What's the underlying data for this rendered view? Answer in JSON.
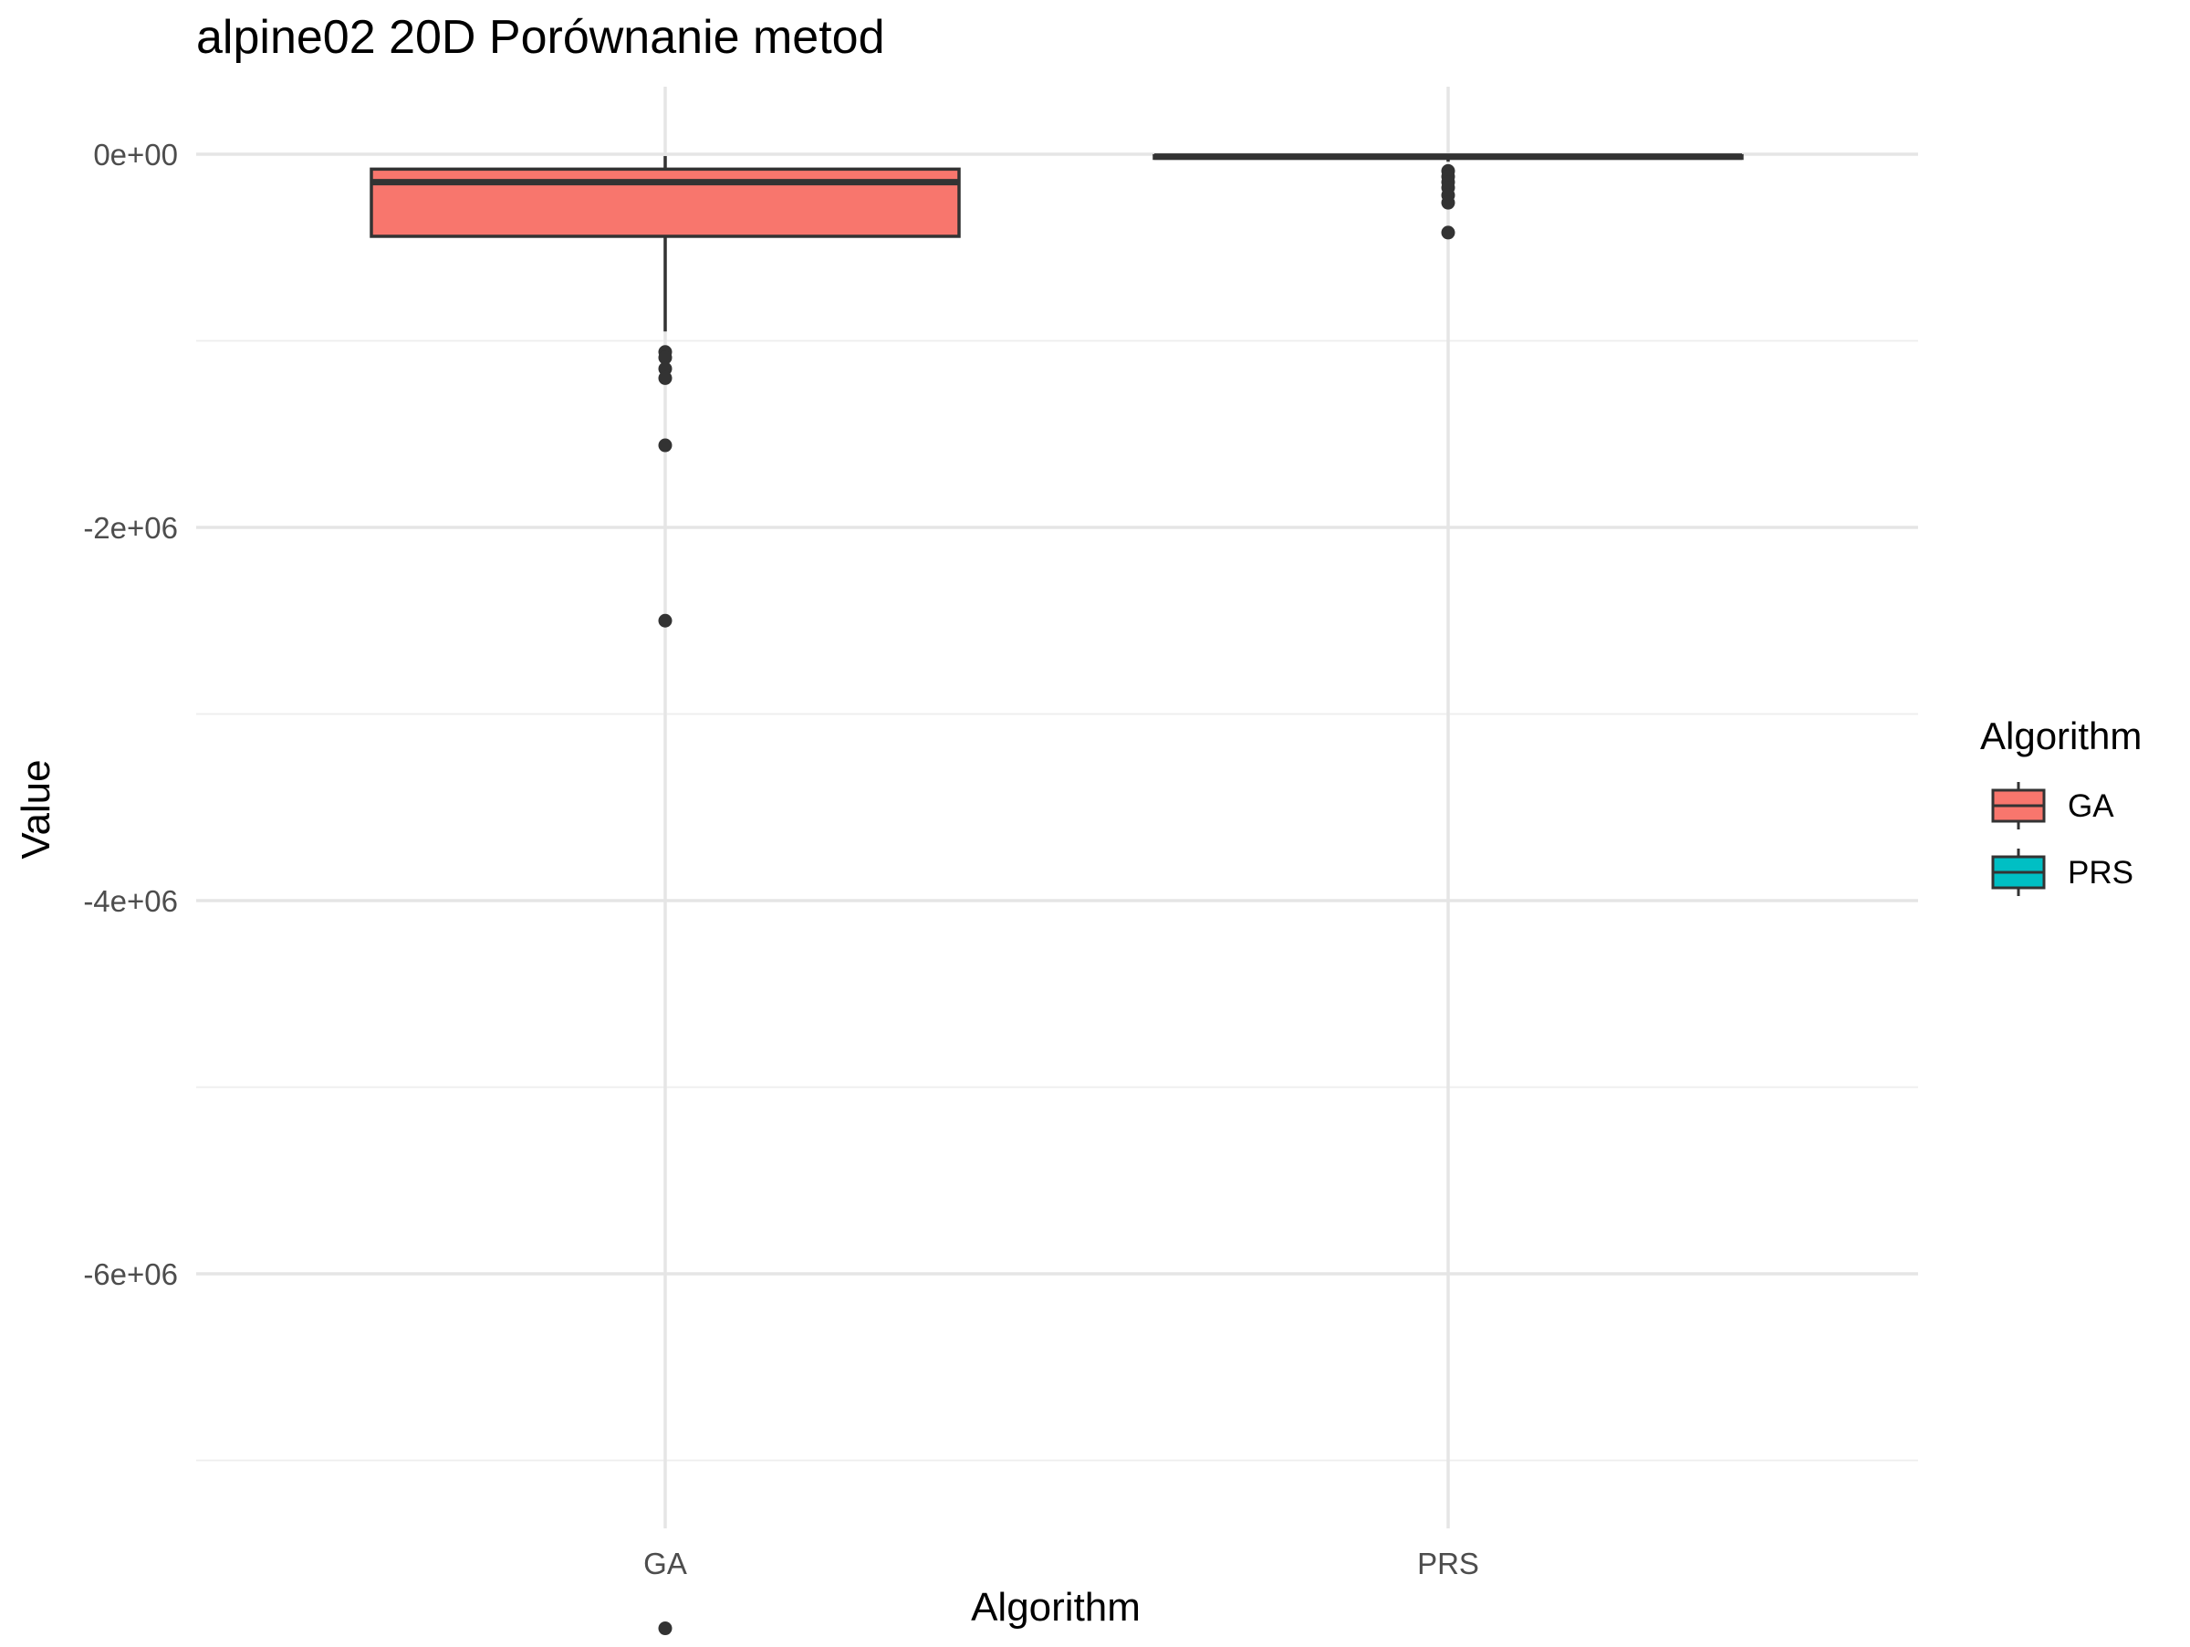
{
  "chart_data": {
    "type": "box",
    "title": "alpine02 20D Porównanie metod",
    "xlabel": "Algorithm",
    "ylabel": "Value",
    "categories": [
      "GA",
      "PRS"
    ],
    "ylim": [
      -8050000,
      350000
    ],
    "y_ticks": [
      {
        "value": 0,
        "label": "0e+00"
      },
      {
        "value": -2000000,
        "label": "-2e+06"
      },
      {
        "value": -4000000,
        "label": "-4e+06"
      },
      {
        "value": -6000000,
        "label": "-6e+06"
      }
    ],
    "y_minor": [
      -1000000,
      -3000000,
      -5000000,
      -7000000
    ],
    "grid": true,
    "legend": {
      "title": "Algorithm",
      "position": "right",
      "entries": [
        {
          "label": "GA",
          "color": "#F8766D"
        },
        {
          "label": "PRS",
          "color": "#00BFC4"
        }
      ]
    },
    "series": [
      {
        "category": "GA",
        "color": "#F8766D",
        "whisker_high": -10000,
        "q3": -80000,
        "median": -150000,
        "q1": -440000,
        "whisker_low": -950000,
        "outliers": [
          -1060000,
          -1090000,
          -1150000,
          -1200000,
          -1560000,
          -2500000,
          -7900000
        ]
      },
      {
        "category": "PRS",
        "color": "#00BFC4",
        "whisker_high": -3000,
        "q3": -8000,
        "median": -13000,
        "q1": -22000,
        "whisker_low": -40000,
        "outliers": [
          -90000,
          -120000,
          -150000,
          -180000,
          -220000,
          -260000,
          -420000
        ]
      }
    ]
  },
  "colors": {
    "box_outline": "#333333",
    "grid_major": "#e5e5e5",
    "tick_text": "#4d4d4d"
  }
}
